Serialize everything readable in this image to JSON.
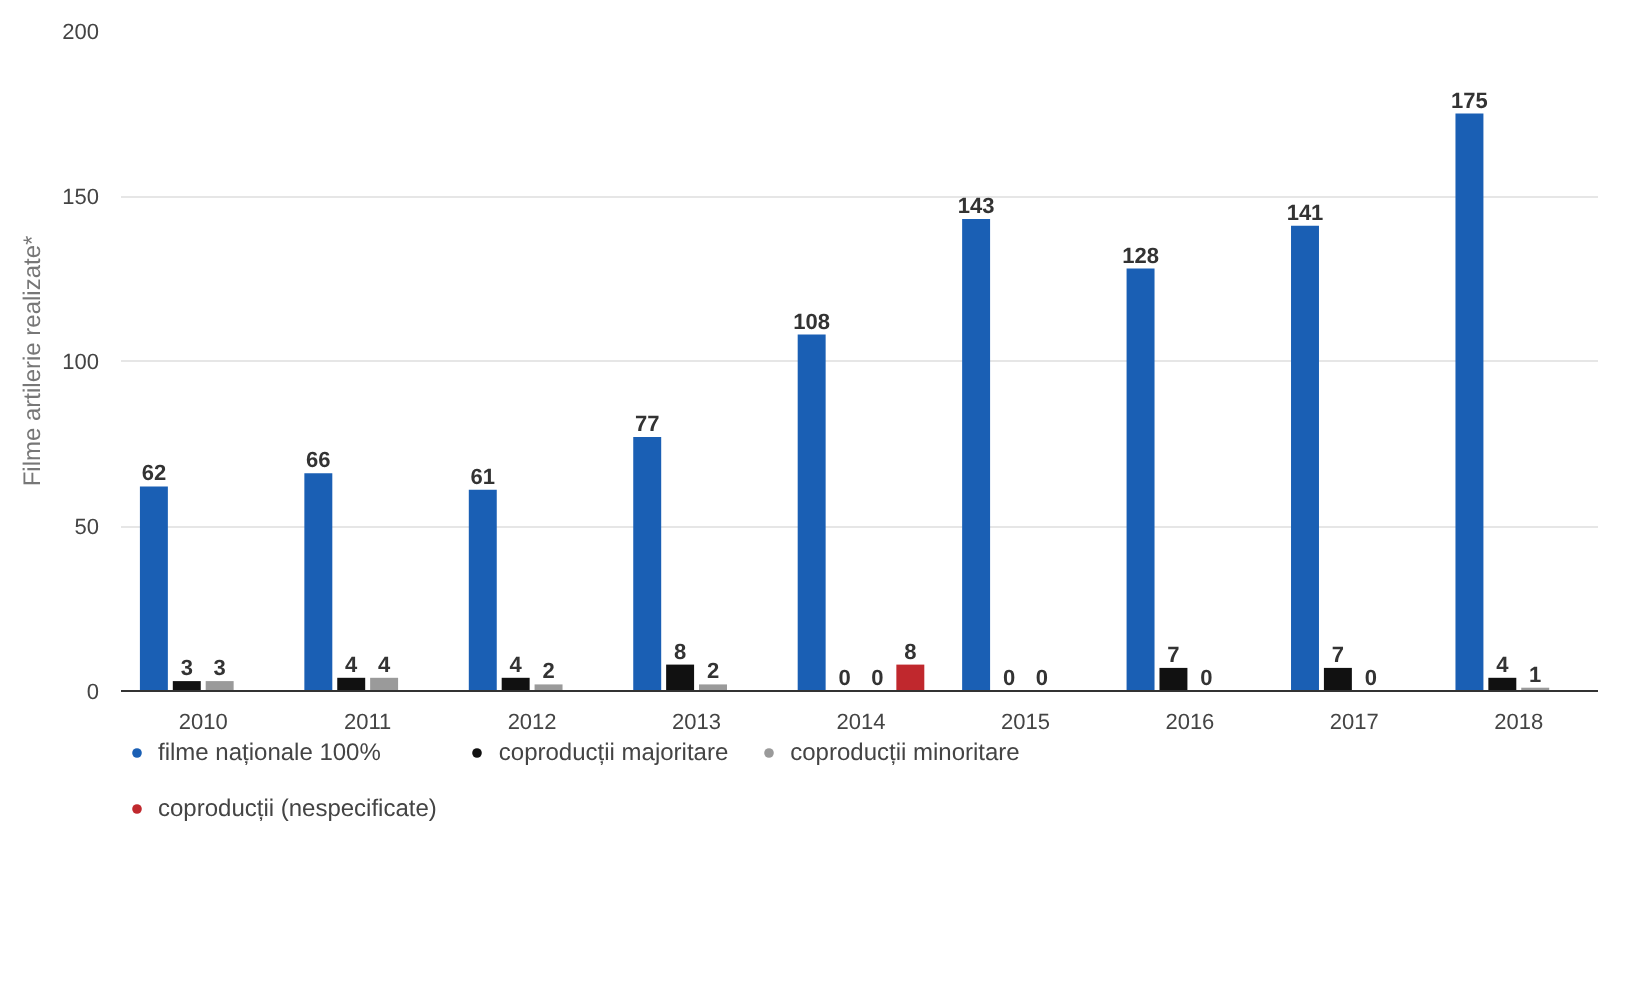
{
  "chart_data": {
    "type": "bar",
    "ylabel": "Filme artilerie realizate*",
    "categories": [
      "2010",
      "2011",
      "2012",
      "2013",
      "2014",
      "2015",
      "2016",
      "2017",
      "2018"
    ],
    "series": [
      {
        "name": "filme naționale 100%",
        "color": "#1a5fb4",
        "values": [
          62,
          66,
          61,
          77,
          108,
          143,
          128,
          141,
          175
        ]
      },
      {
        "name": "coproducții majoritare",
        "color": "#111111",
        "values": [
          3,
          4,
          4,
          8,
          0,
          0,
          7,
          7,
          4
        ]
      },
      {
        "name": "coproducții minoritare",
        "color": "#9a9a9a",
        "values": [
          3,
          4,
          2,
          2,
          0,
          0,
          0,
          0,
          1
        ]
      },
      {
        "name": "coproducții (nespecificate)",
        "color": "#c0282d",
        "values": [
          null,
          null,
          null,
          null,
          8,
          null,
          null,
          null,
          null
        ]
      }
    ],
    "ylim": [
      0,
      200
    ],
    "yticks": [
      0,
      50,
      100,
      150,
      200
    ],
    "grid": "y",
    "legend": "bottom",
    "data_labels": true
  }
}
